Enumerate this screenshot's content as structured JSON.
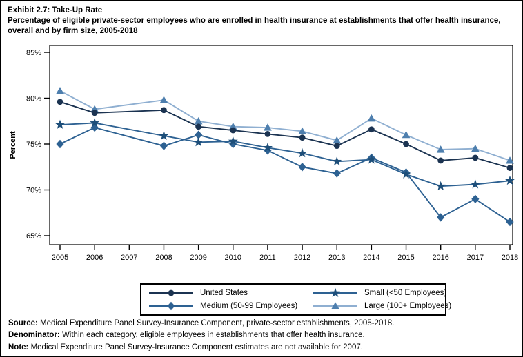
{
  "header": {
    "title": "Exhibit 2.7: Take-Up Rate",
    "subtitle": "Percentage of eligible private-sector employees who are enrolled in health insurance at establishments that offer health insurance, overall and by firm size, 2005-2018"
  },
  "chart_data": {
    "type": "line",
    "title": "Take-Up Rate, overall and by firm size, 2005-2018",
    "xlabel": "",
    "ylabel": "Percent",
    "ylim": [
      65,
      85
    ],
    "y_ticks": [
      85,
      80,
      75,
      70,
      65
    ],
    "y_tick_suffix": "%",
    "x_axis_years": [
      2005,
      2006,
      2007,
      2008,
      2009,
      2010,
      2011,
      2012,
      2013,
      2014,
      2015,
      2016,
      2017,
      2018
    ],
    "x": [
      2005,
      2006,
      2008,
      2009,
      2010,
      2011,
      2012,
      2013,
      2014,
      2015,
      2016,
      2017,
      2018
    ],
    "data_not_available_years": [
      2007
    ],
    "grid": false,
    "legend_position": "bottom-center",
    "series": [
      {
        "name": "United States",
        "marker": "circle",
        "marker_color": "#1b3351",
        "line_color": "#1b3351",
        "values": [
          79.6,
          78.4,
          78.7,
          76.9,
          76.5,
          76.1,
          75.7,
          74.8,
          76.6,
          75.0,
          73.2,
          73.5,
          72.4
        ]
      },
      {
        "name": "Medium (50-99 Employees)",
        "marker": "diamond",
        "marker_color": "#2d6192",
        "line_color": "#2d6192",
        "values": [
          75.0,
          76.8,
          74.8,
          76.0,
          75.0,
          74.3,
          72.5,
          71.8,
          73.5,
          71.9,
          67.0,
          69.0,
          66.5
        ]
      },
      {
        "name": "Small (<50 Employees)",
        "marker": "star",
        "marker_color": "#1d4e79",
        "line_color": "#2d6192",
        "values": [
          77.1,
          77.3,
          75.9,
          75.2,
          75.3,
          74.6,
          74.0,
          73.1,
          73.3,
          71.7,
          70.4,
          70.6,
          71.0
        ]
      },
      {
        "name": "Large (100+ Employees)",
        "marker": "triangle",
        "marker_color": "#4e7fae",
        "line_color": "#8fafd1",
        "values": [
          80.8,
          78.8,
          79.8,
          77.5,
          76.9,
          76.8,
          76.4,
          75.4,
          77.8,
          76.0,
          74.4,
          74.5,
          73.2
        ]
      }
    ]
  },
  "legend": {
    "items": [
      {
        "label": "United States",
        "series": "United States"
      },
      {
        "label": "Small (<50 Employees)",
        "series": "Small (<50 Employees)"
      },
      {
        "label": "Medium (50-99 Employees)",
        "series": "Medium (50-99 Employees)"
      },
      {
        "label": "Large (100+ Employees)",
        "series": "Large (100+ Employees)"
      }
    ]
  },
  "footer": {
    "lines": [
      {
        "label": "Source:",
        "text": " Medical Expenditure Panel Survey-Insurance Component, private-sector establishments, 2005-2018."
      },
      {
        "label": "Denominator:",
        "text": " Within each category, eligible employees in establishments that offer health insurance."
      },
      {
        "label": "Note:",
        "text": " Medical Expenditure Panel Survey-Insurance Component estimates are not available for 2007."
      }
    ]
  }
}
